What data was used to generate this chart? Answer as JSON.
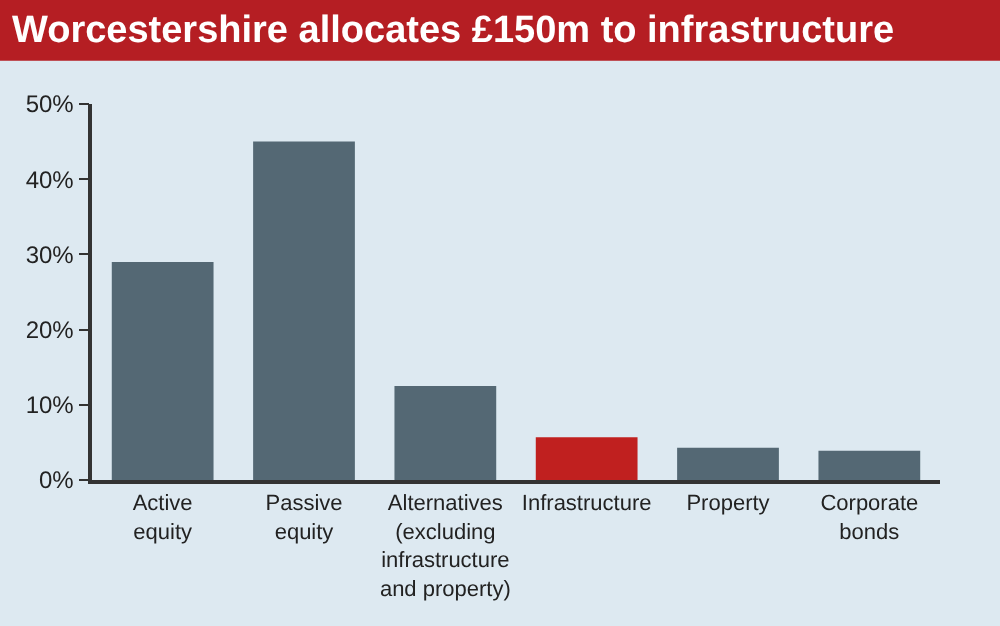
{
  "chart_data": {
    "type": "bar",
    "title": "Worcestershire allocates £150m to infrastructure",
    "categories": [
      "Active\nequity",
      "Passive\nequity",
      "Alternatives\n(excluding\ninfrastructure\nand property)",
      "Infrastructure",
      "Property",
      "Corporate\nbonds"
    ],
    "values": [
      29,
      45,
      12.5,
      5.7,
      4.3,
      3.9
    ],
    "colors": [
      "#546874",
      "#546874",
      "#546874",
      "#c0201f",
      "#546874",
      "#546874"
    ],
    "ylim": [
      0,
      50
    ],
    "yticks": [
      {
        "value": 0,
        "label": "0%"
      },
      {
        "value": 10,
        "label": "10%"
      },
      {
        "value": 20,
        "label": "20%"
      },
      {
        "value": 30,
        "label": "30%"
      },
      {
        "value": 40,
        "label": "40%"
      },
      {
        "value": 50,
        "label": "50%"
      }
    ],
    "grid": false
  }
}
